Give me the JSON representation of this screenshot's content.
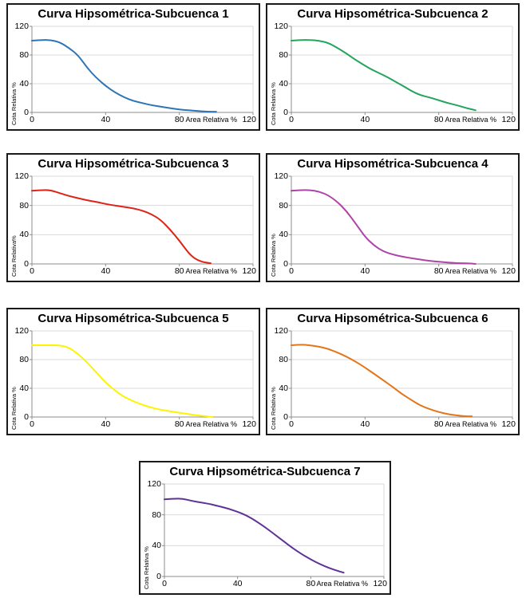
{
  "page": {
    "background": "#ffffff"
  },
  "chart_data": [
    {
      "type": "line",
      "title": "Curva Hipsométrica-Subcuenca 1",
      "xlabel": "Area Relativa %",
      "ylabel": "Cota Relativa %",
      "color": "#2E75B6",
      "xlim": [
        0,
        120
      ],
      "ylim": [
        0,
        120
      ],
      "x_tick_labels": [
        "0",
        "40",
        "80",
        "120"
      ],
      "y_tick_labels": [
        "0",
        "40",
        "80",
        "120"
      ],
      "grid": "horizontal",
      "x": [
        0,
        5,
        10,
        15,
        20,
        25,
        30,
        35,
        40,
        45,
        50,
        55,
        60,
        65,
        70,
        75,
        80,
        85,
        90,
        95,
        100
      ],
      "y": [
        100,
        101,
        101,
        98,
        90,
        80,
        62,
        48,
        37,
        28,
        21,
        16,
        13,
        10,
        8,
        6,
        4,
        3,
        2,
        1,
        1
      ]
    },
    {
      "type": "line",
      "title": "Curva Hipsométrica-Subcuenca 2",
      "xlabel": "Area Relativa %",
      "ylabel": "Cota Relativa %",
      "color": "#24A45C",
      "xlim": [
        0,
        120
      ],
      "ylim": [
        0,
        120
      ],
      "x_tick_labels": [
        "0",
        "40",
        "80",
        "120"
      ],
      "y_tick_labels": [
        "0",
        "40",
        "80",
        "120"
      ],
      "grid": "horizontal",
      "x": [
        0,
        5,
        10,
        15,
        20,
        25,
        30,
        35,
        40,
        45,
        50,
        55,
        60,
        65,
        70,
        75,
        80,
        85,
        90,
        95,
        100
      ],
      "y": [
        100,
        101,
        101,
        100,
        97,
        90,
        82,
        73,
        65,
        58,
        52,
        45,
        38,
        30,
        24,
        21,
        17,
        13,
        10,
        6,
        3
      ]
    },
    {
      "type": "line",
      "title": "Curva Hipsométrica-Subcuenca 3",
      "xlabel": "Area Relativa %",
      "ylabel": "Cota Relativa%",
      "color": "#DE2418",
      "xlim": [
        0,
        120
      ],
      "ylim": [
        0,
        120
      ],
      "x_tick_labels": [
        "0",
        "40",
        "80",
        "120"
      ],
      "y_tick_labels": [
        "0",
        "40",
        "80",
        "120"
      ],
      "grid": "horizontal",
      "x": [
        0,
        5,
        10,
        15,
        20,
        25,
        30,
        35,
        40,
        45,
        50,
        55,
        60,
        65,
        70,
        75,
        80,
        85,
        88,
        91,
        94,
        97
      ],
      "y": [
        100,
        101,
        101,
        97,
        93,
        90,
        87,
        85,
        82,
        80,
        78,
        76,
        73,
        68,
        60,
        47,
        32,
        15,
        8,
        4,
        2,
        1
      ]
    },
    {
      "type": "line",
      "title": "Curva Hipsométrica-Subcuenca 4",
      "xlabel": "Area Relativa %",
      "ylabel": "Cota Relativa %",
      "color": "#AE44A7",
      "xlim": [
        0,
        120
      ],
      "ylim": [
        0,
        120
      ],
      "x_tick_labels": [
        "0",
        "40",
        "80",
        "120"
      ],
      "y_tick_labels": [
        "0",
        "40",
        "80",
        "120"
      ],
      "grid": "horizontal",
      "x": [
        0,
        5,
        10,
        15,
        20,
        25,
        30,
        35,
        40,
        45,
        50,
        55,
        60,
        65,
        70,
        75,
        80,
        85,
        90,
        95,
        100
      ],
      "y": [
        100,
        101,
        101,
        99,
        94,
        85,
        72,
        55,
        37,
        25,
        17,
        13,
        10,
        8,
        6,
        4,
        3,
        2,
        1,
        1,
        0
      ]
    },
    {
      "type": "line",
      "title": "Curva Hipsométrica-Subcuenca 5",
      "xlabel": "Area Relativa %",
      "ylabel": "Cota Relativa %",
      "color": "#FCF400",
      "xlim": [
        0,
        120
      ],
      "ylim": [
        0,
        120
      ],
      "x_tick_labels": [
        "0",
        "40",
        "80",
        "120"
      ],
      "y_tick_labels": [
        "0",
        "40",
        "80",
        "120"
      ],
      "grid": "horizontal",
      "x": [
        0,
        5,
        10,
        15,
        20,
        25,
        30,
        35,
        40,
        45,
        50,
        55,
        60,
        65,
        70,
        75,
        80,
        85,
        90,
        95,
        98
      ],
      "y": [
        100,
        100,
        100,
        100,
        97,
        88,
        76,
        62,
        48,
        37,
        28,
        22,
        17,
        13,
        10,
        8,
        6,
        4,
        2,
        1,
        0
      ]
    },
    {
      "type": "line",
      "title": "Curva Hipsométrica-Subcuenca 6",
      "xlabel": "Area Relativa %",
      "ylabel": "Cota Relativa %",
      "color": "#E3761B",
      "xlim": [
        0,
        120
      ],
      "ylim": [
        0,
        120
      ],
      "x_tick_labels": [
        "0",
        "40",
        "80",
        "120"
      ],
      "y_tick_labels": [
        "0",
        "40",
        "80",
        "120"
      ],
      "grid": "horizontal",
      "x": [
        0,
        5,
        10,
        15,
        20,
        25,
        30,
        35,
        40,
        45,
        50,
        55,
        60,
        65,
        70,
        75,
        80,
        85,
        90,
        95,
        98
      ],
      "y": [
        100,
        101,
        100,
        98,
        95,
        90,
        84,
        77,
        69,
        60,
        51,
        42,
        32,
        24,
        16,
        11,
        7,
        4,
        2,
        1,
        1
      ]
    },
    {
      "type": "line",
      "title": "Curva Hipsométrica-Subcuenca 7",
      "xlabel": "Area Relativa %",
      "ylabel": "Cota Relativa %",
      "color": "#5E3297",
      "xlim": [
        0,
        120
      ],
      "ylim": [
        0,
        120
      ],
      "x_tick_labels": [
        "0",
        "40",
        "80",
        "120"
      ],
      "y_tick_labels": [
        "0",
        "40",
        "80",
        "120"
      ],
      "grid": "horizontal",
      "x": [
        0,
        5,
        10,
        15,
        20,
        25,
        30,
        35,
        40,
        45,
        50,
        55,
        60,
        65,
        70,
        75,
        80,
        85,
        90,
        95,
        98
      ],
      "y": [
        100,
        101,
        101,
        98,
        96,
        94,
        91,
        88,
        84,
        79,
        72,
        64,
        55,
        46,
        37,
        29,
        22,
        16,
        11,
        7,
        5
      ]
    }
  ],
  "style": {
    "gridline_color": "#D9D9D9",
    "axis_color": "#8C8C8C",
    "text_color": "#000000",
    "border_color": "#1a1a1a"
  }
}
